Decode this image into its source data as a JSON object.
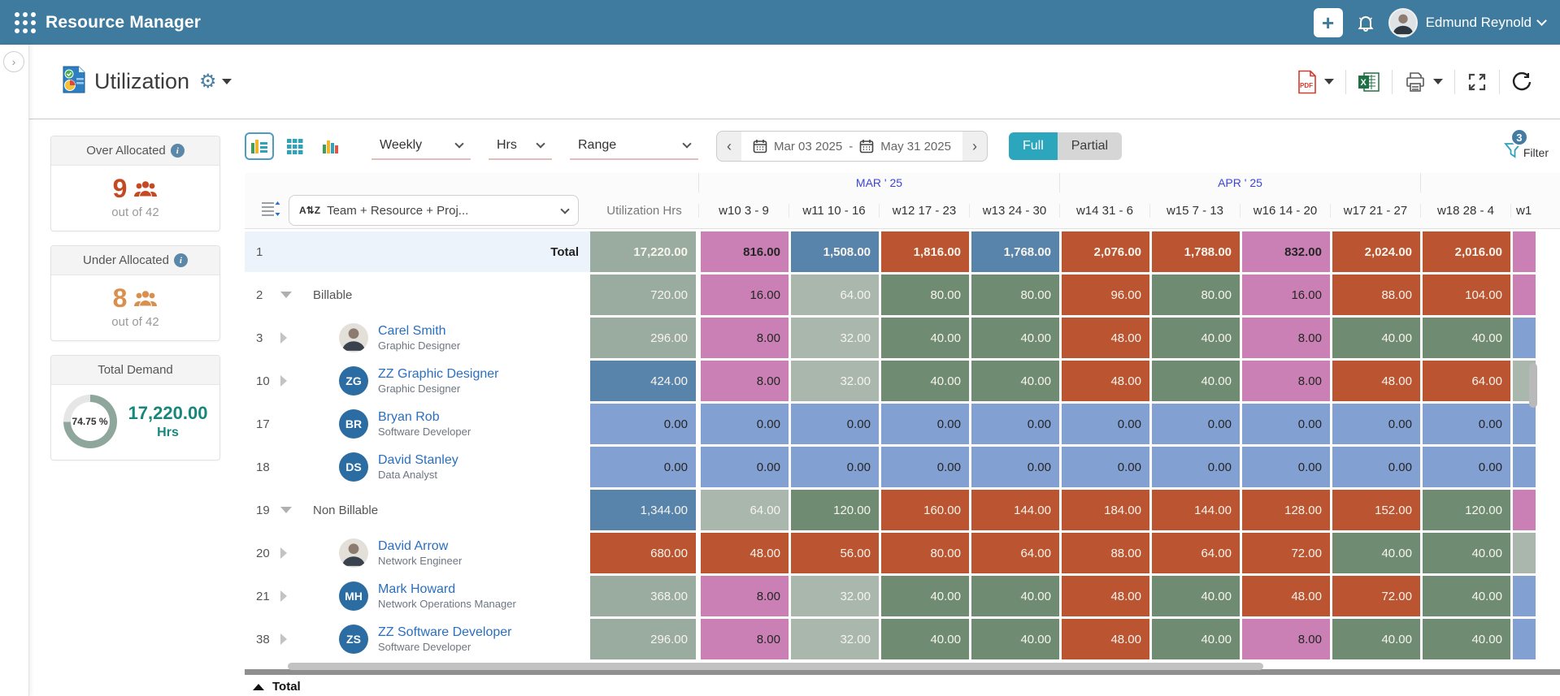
{
  "topbar": {
    "app_title": "Resource Manager",
    "user_name": "Edmund Reynold"
  },
  "page": {
    "title": "Utilization"
  },
  "summary_cards": {
    "over": {
      "title": "Over Allocated",
      "value": "9",
      "sub": "out of 42"
    },
    "under": {
      "title": "Under Allocated",
      "value": "8",
      "sub": "out of 42"
    },
    "demand": {
      "title": "Total Demand",
      "percent": "74.75 %",
      "value": "17,220.00",
      "unit": "Hrs"
    }
  },
  "toolbar": {
    "period_select": "Weekly",
    "unit_select": "Hrs",
    "range_select": "Range",
    "date_from": "Mar 03 2025",
    "date_separator": "-",
    "date_to": "May 31 2025",
    "full_label": "Full",
    "partial_label": "Partial",
    "filter_label": "Filter",
    "filter_count": "3"
  },
  "grid": {
    "group_select": "Team + Resource + Proj...",
    "sort_icon_label": "A⇅Z",
    "util_header": "Utilization Hrs",
    "month_groups": [
      {
        "label": "MAR ' 25",
        "weeks": 4
      },
      {
        "label": "APR ' 25",
        "weeks": 4
      },
      {
        "label": "",
        "weeks": 2
      }
    ],
    "weeks": [
      "w10 3 - 9",
      "w11 10 - 16",
      "w12 17 - 23",
      "w13 24 - 30",
      "w14 31 - 6",
      "w15 7 - 13",
      "w16 14 - 20",
      "w17 21 - 27",
      "w18 28 - 4",
      "w1"
    ],
    "footer_label": "Total",
    "rows": [
      {
        "num": "1",
        "type": "total",
        "label": "Total",
        "util": {
          "v": "17,220.00",
          "c": "utilgray"
        },
        "cells": [
          {
            "v": "816.00",
            "c": "pink"
          },
          {
            "v": "1,508.00",
            "c": "steel"
          },
          {
            "v": "1,816.00",
            "c": "rust"
          },
          {
            "v": "1,768.00",
            "c": "steel"
          },
          {
            "v": "2,076.00",
            "c": "rust"
          },
          {
            "v": "1,788.00",
            "c": "rust"
          },
          {
            "v": "832.00",
            "c": "pink"
          },
          {
            "v": "2,024.00",
            "c": "rust"
          },
          {
            "v": "2,016.00",
            "c": "rust"
          },
          {
            "v": "",
            "c": "pink"
          }
        ]
      },
      {
        "num": "2",
        "type": "group",
        "label": "Billable",
        "expander": "down",
        "util": {
          "v": "720.00",
          "c": "utilgray"
        },
        "cells": [
          {
            "v": "16.00",
            "c": "pink"
          },
          {
            "v": "64.00",
            "c": "lightsage"
          },
          {
            "v": "80.00",
            "c": "sage"
          },
          {
            "v": "80.00",
            "c": "sage"
          },
          {
            "v": "96.00",
            "c": "rust"
          },
          {
            "v": "80.00",
            "c": "sage"
          },
          {
            "v": "16.00",
            "c": "pink"
          },
          {
            "v": "88.00",
            "c": "rust"
          },
          {
            "v": "104.00",
            "c": "rust"
          },
          {
            "v": "",
            "c": "pink"
          }
        ]
      },
      {
        "num": "3",
        "type": "resource",
        "name": "Carel Smith",
        "role": "Graphic Designer",
        "avatar": "photo",
        "expander": "right",
        "util": {
          "v": "296.00",
          "c": "utilgray"
        },
        "cells": [
          {
            "v": "8.00",
            "c": "pink"
          },
          {
            "v": "32.00",
            "c": "lightsage"
          },
          {
            "v": "40.00",
            "c": "sage"
          },
          {
            "v": "40.00",
            "c": "sage"
          },
          {
            "v": "48.00",
            "c": "rust"
          },
          {
            "v": "40.00",
            "c": "sage"
          },
          {
            "v": "8.00",
            "c": "pink"
          },
          {
            "v": "40.00",
            "c": "sage"
          },
          {
            "v": "40.00",
            "c": "sage"
          },
          {
            "v": "",
            "c": "periwinkle"
          }
        ]
      },
      {
        "num": "10",
        "type": "resource",
        "name": "ZZ Graphic Designer",
        "role": "Graphic Designer",
        "avatar": "ZG",
        "expander": "right",
        "util": {
          "v": "424.00",
          "c": "steel"
        },
        "cells": [
          {
            "v": "8.00",
            "c": "pink"
          },
          {
            "v": "32.00",
            "c": "lightsage"
          },
          {
            "v": "40.00",
            "c": "sage"
          },
          {
            "v": "40.00",
            "c": "sage"
          },
          {
            "v": "48.00",
            "c": "rust"
          },
          {
            "v": "40.00",
            "c": "sage"
          },
          {
            "v": "8.00",
            "c": "pink"
          },
          {
            "v": "48.00",
            "c": "rust"
          },
          {
            "v": "64.00",
            "c": "rust"
          },
          {
            "v": "",
            "c": "lightsage"
          }
        ]
      },
      {
        "num": "17",
        "type": "resource",
        "name": "Bryan Rob",
        "role": "Software Developer",
        "avatar": "BR",
        "expander": "none",
        "util": {
          "v": "0.00",
          "c": "periwinkle"
        },
        "cells": [
          {
            "v": "0.00",
            "c": "periwinkle"
          },
          {
            "v": "0.00",
            "c": "periwinkle"
          },
          {
            "v": "0.00",
            "c": "periwinkle"
          },
          {
            "v": "0.00",
            "c": "periwinkle"
          },
          {
            "v": "0.00",
            "c": "periwinkle"
          },
          {
            "v": "0.00",
            "c": "periwinkle"
          },
          {
            "v": "0.00",
            "c": "periwinkle"
          },
          {
            "v": "0.00",
            "c": "periwinkle"
          },
          {
            "v": "0.00",
            "c": "periwinkle"
          },
          {
            "v": "",
            "c": "periwinkle"
          }
        ]
      },
      {
        "num": "18",
        "type": "resource",
        "name": "David Stanley",
        "role": "Data Analyst",
        "avatar": "DS",
        "expander": "none",
        "util": {
          "v": "0.00",
          "c": "periwinkle"
        },
        "cells": [
          {
            "v": "0.00",
            "c": "periwinkle"
          },
          {
            "v": "0.00",
            "c": "periwinkle"
          },
          {
            "v": "0.00",
            "c": "periwinkle"
          },
          {
            "v": "0.00",
            "c": "periwinkle"
          },
          {
            "v": "0.00",
            "c": "periwinkle"
          },
          {
            "v": "0.00",
            "c": "periwinkle"
          },
          {
            "v": "0.00",
            "c": "periwinkle"
          },
          {
            "v": "0.00",
            "c": "periwinkle"
          },
          {
            "v": "0.00",
            "c": "periwinkle"
          },
          {
            "v": "",
            "c": "periwinkle"
          }
        ]
      },
      {
        "num": "19",
        "type": "group",
        "label": "Non Billable",
        "expander": "down",
        "util": {
          "v": "1,344.00",
          "c": "steel"
        },
        "cells": [
          {
            "v": "64.00",
            "c": "lightsage"
          },
          {
            "v": "120.00",
            "c": "sage"
          },
          {
            "v": "160.00",
            "c": "rust"
          },
          {
            "v": "144.00",
            "c": "rust"
          },
          {
            "v": "184.00",
            "c": "rust"
          },
          {
            "v": "144.00",
            "c": "rust"
          },
          {
            "v": "128.00",
            "c": "rust"
          },
          {
            "v": "152.00",
            "c": "rust"
          },
          {
            "v": "120.00",
            "c": "sage"
          },
          {
            "v": "",
            "c": "pink"
          }
        ]
      },
      {
        "num": "20",
        "type": "resource",
        "name": "David Arrow",
        "role": "Network Engineer",
        "avatar": "photo",
        "expander": "right",
        "util": {
          "v": "680.00",
          "c": "rust"
        },
        "cells": [
          {
            "v": "48.00",
            "c": "rust"
          },
          {
            "v": "56.00",
            "c": "rust"
          },
          {
            "v": "80.00",
            "c": "rust"
          },
          {
            "v": "64.00",
            "c": "rust"
          },
          {
            "v": "88.00",
            "c": "rust"
          },
          {
            "v": "64.00",
            "c": "rust"
          },
          {
            "v": "72.00",
            "c": "rust"
          },
          {
            "v": "40.00",
            "c": "sage"
          },
          {
            "v": "40.00",
            "c": "sage"
          },
          {
            "v": "",
            "c": "lightsage"
          }
        ]
      },
      {
        "num": "21",
        "type": "resource",
        "name": "Mark Howard",
        "role": "Network Operations Manager",
        "avatar": "MH",
        "expander": "right",
        "util": {
          "v": "368.00",
          "c": "utilgray"
        },
        "cells": [
          {
            "v": "8.00",
            "c": "pink"
          },
          {
            "v": "32.00",
            "c": "lightsage"
          },
          {
            "v": "40.00",
            "c": "sage"
          },
          {
            "v": "40.00",
            "c": "sage"
          },
          {
            "v": "48.00",
            "c": "rust"
          },
          {
            "v": "40.00",
            "c": "sage"
          },
          {
            "v": "48.00",
            "c": "rust"
          },
          {
            "v": "72.00",
            "c": "rust"
          },
          {
            "v": "40.00",
            "c": "sage"
          },
          {
            "v": "",
            "c": "periwinkle"
          }
        ]
      },
      {
        "num": "38",
        "type": "resource",
        "name": "ZZ Software Developer",
        "role": "Software Developer",
        "avatar": "ZS",
        "expander": "right",
        "util": {
          "v": "296.00",
          "c": "utilgray"
        },
        "cells": [
          {
            "v": "8.00",
            "c": "pink"
          },
          {
            "v": "32.00",
            "c": "lightsage"
          },
          {
            "v": "40.00",
            "c": "sage"
          },
          {
            "v": "40.00",
            "c": "sage"
          },
          {
            "v": "48.00",
            "c": "rust"
          },
          {
            "v": "40.00",
            "c": "sage"
          },
          {
            "v": "8.00",
            "c": "pink"
          },
          {
            "v": "40.00",
            "c": "sage"
          },
          {
            "v": "40.00",
            "c": "sage"
          },
          {
            "v": "",
            "c": "periwinkle"
          }
        ]
      }
    ]
  },
  "colors": {
    "header_blue": "#3e7b9e",
    "accent_teal": "#2ba6bc",
    "month_label": "#3c44d8",
    "over_red": "#c44a24",
    "under_orange": "#d9904f",
    "demand_teal": "#17867b",
    "pink": "#ca80b4",
    "lightsage": "#a9b7ac",
    "sage": "#6f8c72",
    "rust": "#bb5431",
    "steel": "#5884ac",
    "periwinkle": "#82a0d2",
    "utilgray": "#9aab9f"
  },
  "dark_text_colors": [
    "pink",
    "periwinkle"
  ]
}
